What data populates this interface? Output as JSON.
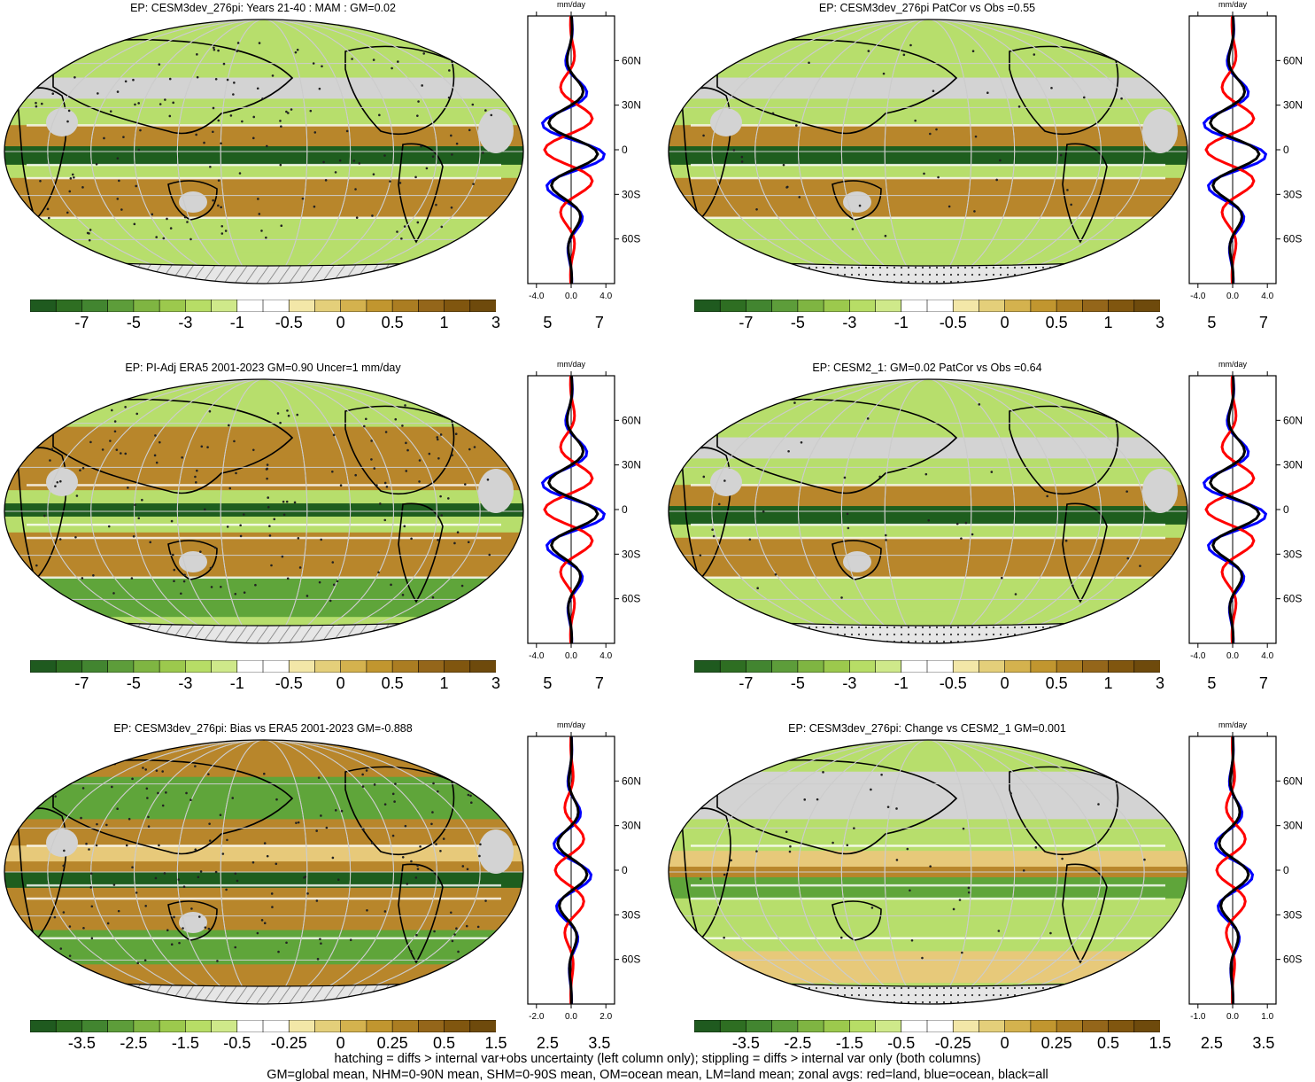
{
  "colors": {
    "dry_strong": "#8a5a10",
    "dry_mid": "#b8862b",
    "dry_light": "#e7c97a",
    "neutral": "#ffffff",
    "wet_light": "#b7de6c",
    "wet_mid": "#5fa53a",
    "wet_strong": "#1e5e1e",
    "land_missing": "#d3d3d3",
    "zonal_land": "#ff0000",
    "zonal_ocean": "#0000ff",
    "zonal_all": "#000000"
  },
  "colorbar_main": {
    "swatches": [
      "#1f5a1f",
      "#2e6e22",
      "#428530",
      "#5d9d3a",
      "#7fb542",
      "#9cc94d",
      "#b7dd66",
      "#cfe98a",
      "#ffffff",
      "#ffffff",
      "#f3e7a8",
      "#e4cf7a",
      "#d4b24e",
      "#c1962f",
      "#ab7d22",
      "#94661a",
      "#80560f",
      "#6e4a0c"
    ],
    "labels": [
      "-7",
      "-5",
      "-3",
      "-1",
      "-0.5",
      "0",
      "0.5",
      "1",
      "3",
      "5",
      "7"
    ]
  },
  "colorbar_bias": {
    "swatches": [
      "#1f5a1f",
      "#2e6e22",
      "#428530",
      "#5d9d3a",
      "#7fb542",
      "#9cc94d",
      "#b7dd66",
      "#cfe98a",
      "#ffffff",
      "#ffffff",
      "#f3e7a8",
      "#e4cf7a",
      "#d4b24e",
      "#c1962f",
      "#ab7d22",
      "#94661a",
      "#80560f",
      "#6e4a0c"
    ],
    "labels": [
      "-3.5",
      "-2.5",
      "-1.5",
      "-0.5",
      "-0.25",
      "0",
      "0.25",
      "0.5",
      "1.5",
      "2.5",
      "3.5"
    ]
  },
  "zonal_axis": {
    "unit": "mm/day",
    "lat_labels": [
      "60N",
      "30N",
      "0",
      "30S",
      "60S"
    ],
    "x_labels_wide": [
      "-4.0",
      "0.0",
      "4.0"
    ],
    "x_labels_bias": [
      "-2.0",
      "0.0",
      "2.0"
    ],
    "x_labels_change": [
      "-1.0",
      "0.0",
      "1.0"
    ]
  },
  "panels": [
    {
      "id": "model-mam",
      "title": "EP: CESM3dev_276pi: Years 21-40 : MAM : GM=0.02",
      "hatching": true,
      "stippling": true,
      "colorbar": "main",
      "xlabels": "wide"
    },
    {
      "id": "model-patcor",
      "title": "EP: CESM3dev_276pi PatCor vs Obs =0.55",
      "hatching": false,
      "stippling": true,
      "colorbar": "main",
      "xlabels": "wide"
    },
    {
      "id": "obs-era5",
      "title": "EP: PI-Adj ERA5 2001-2023 GM=0.90 Uncer=1 mm/day",
      "hatching": true,
      "stippling": true,
      "colorbar": "main",
      "xlabels": "wide"
    },
    {
      "id": "cesm2",
      "title": "EP: CESM2_1: GM=0.02 PatCor vs Obs =0.64",
      "hatching": false,
      "stippling": true,
      "colorbar": "main",
      "xlabels": "wide"
    },
    {
      "id": "bias",
      "title": "EP: CESM3dev_276pi: Bias vs ERA5 2001-2023 GM=-0.888",
      "hatching": true,
      "stippling": true,
      "colorbar": "bias",
      "xlabels": "bias"
    },
    {
      "id": "change",
      "title": "EP: CESM3dev_276pi: Change vs CESM2_1 GM=0.001",
      "hatching": false,
      "stippling": true,
      "colorbar": "bias",
      "xlabels": "change"
    }
  ],
  "footer": {
    "line1": "hatching = diffs > internal var+obs uncertainty (left column only); stippling = diffs > internal var only (both columns)",
    "line2": "GM=global mean, NHM=0-90N mean, SHM=0-90S mean, OM=ocean mean, LM=land mean; zonal avgs: red=land, blue=ocean, black=all"
  }
}
